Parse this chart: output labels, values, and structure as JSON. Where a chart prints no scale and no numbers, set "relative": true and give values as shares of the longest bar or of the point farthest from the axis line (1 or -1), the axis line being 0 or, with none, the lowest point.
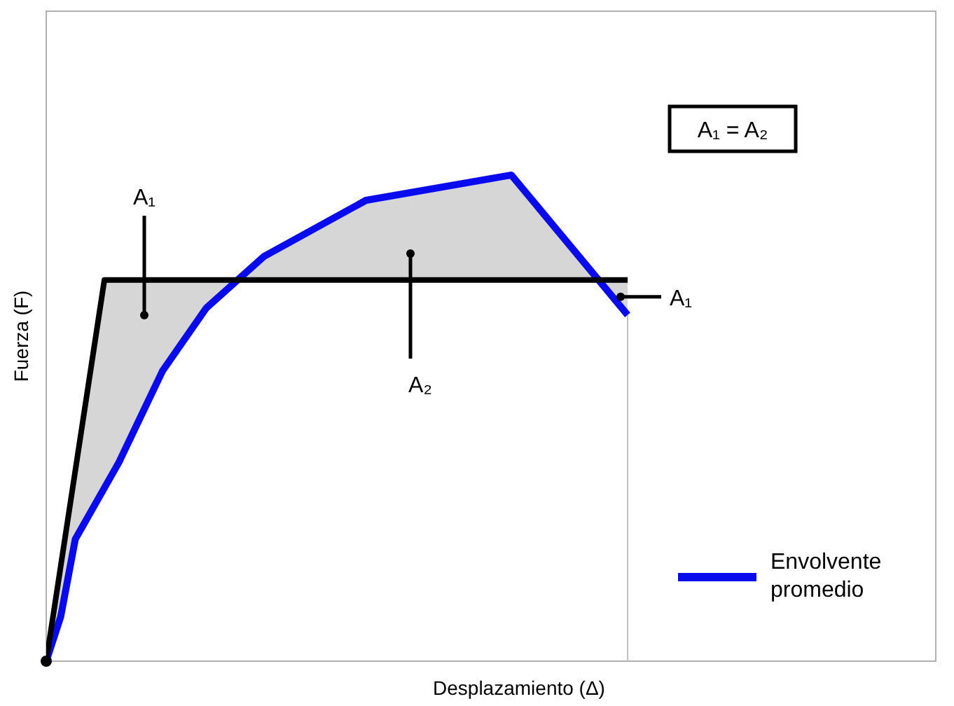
{
  "chart_data": {
    "type": "line",
    "relative": true,
    "xlabel": "Desplazamiento (Δ)",
    "ylabel": "Fuerza (F)",
    "legend": "bottom right",
    "grid": false,
    "marker": "none",
    "line_style": "solid",
    "categories": [
      null,
      null,
      null,
      null,
      null,
      null,
      null,
      null,
      null,
      null,
      null,
      null,
      null,
      null,
      null,
      null,
      null,
      null,
      null,
      null,
      null,
      null,
      null,
      null,
      null,
      null,
      null,
      null,
      null,
      null,
      null,
      null,
      null,
      null,
      null,
      null,
      null,
      null,
      null,
      null,
      null
    ],
    "series": [
      {
        "name": "Envolvente promedio",
        "color": "#0a0aee",
        "values": [
          0,
          0.092,
          0.251,
          null,
          null,
          0.409,
          null,
          null,
          0.597,
          null,
          null,
          0.726,
          null,
          null,
          null,
          0.833,
          null,
          null,
          null,
          null,
          null,
          null,
          0.948,
          null,
          null,
          null,
          null,
          null,
          null,
          null,
          null,
          null,
          1,
          null,
          null,
          null,
          null,
          null,
          null,
          null,
          0.712
        ]
      },
      {
        "color": "#000000",
        "values": [
          0,
          null,
          null,
          null,
          0.784,
          null,
          null,
          null,
          null,
          null,
          null,
          null,
          null,
          null,
          null,
          null,
          null,
          null,
          null,
          null,
          null,
          null,
          null,
          null,
          null,
          null,
          null,
          null,
          null,
          null,
          null,
          null,
          null,
          null,
          null,
          null,
          null,
          null,
          null,
          null,
          0.784
        ]
      }
    ],
    "ref_lines": [
      {
        "axis": "x",
        "color": "#c0c0c0"
      }
    ],
    "annotations": [
      "A₁ = A₂",
      "A₁",
      "A₂",
      "A₁"
    ]
  }
}
